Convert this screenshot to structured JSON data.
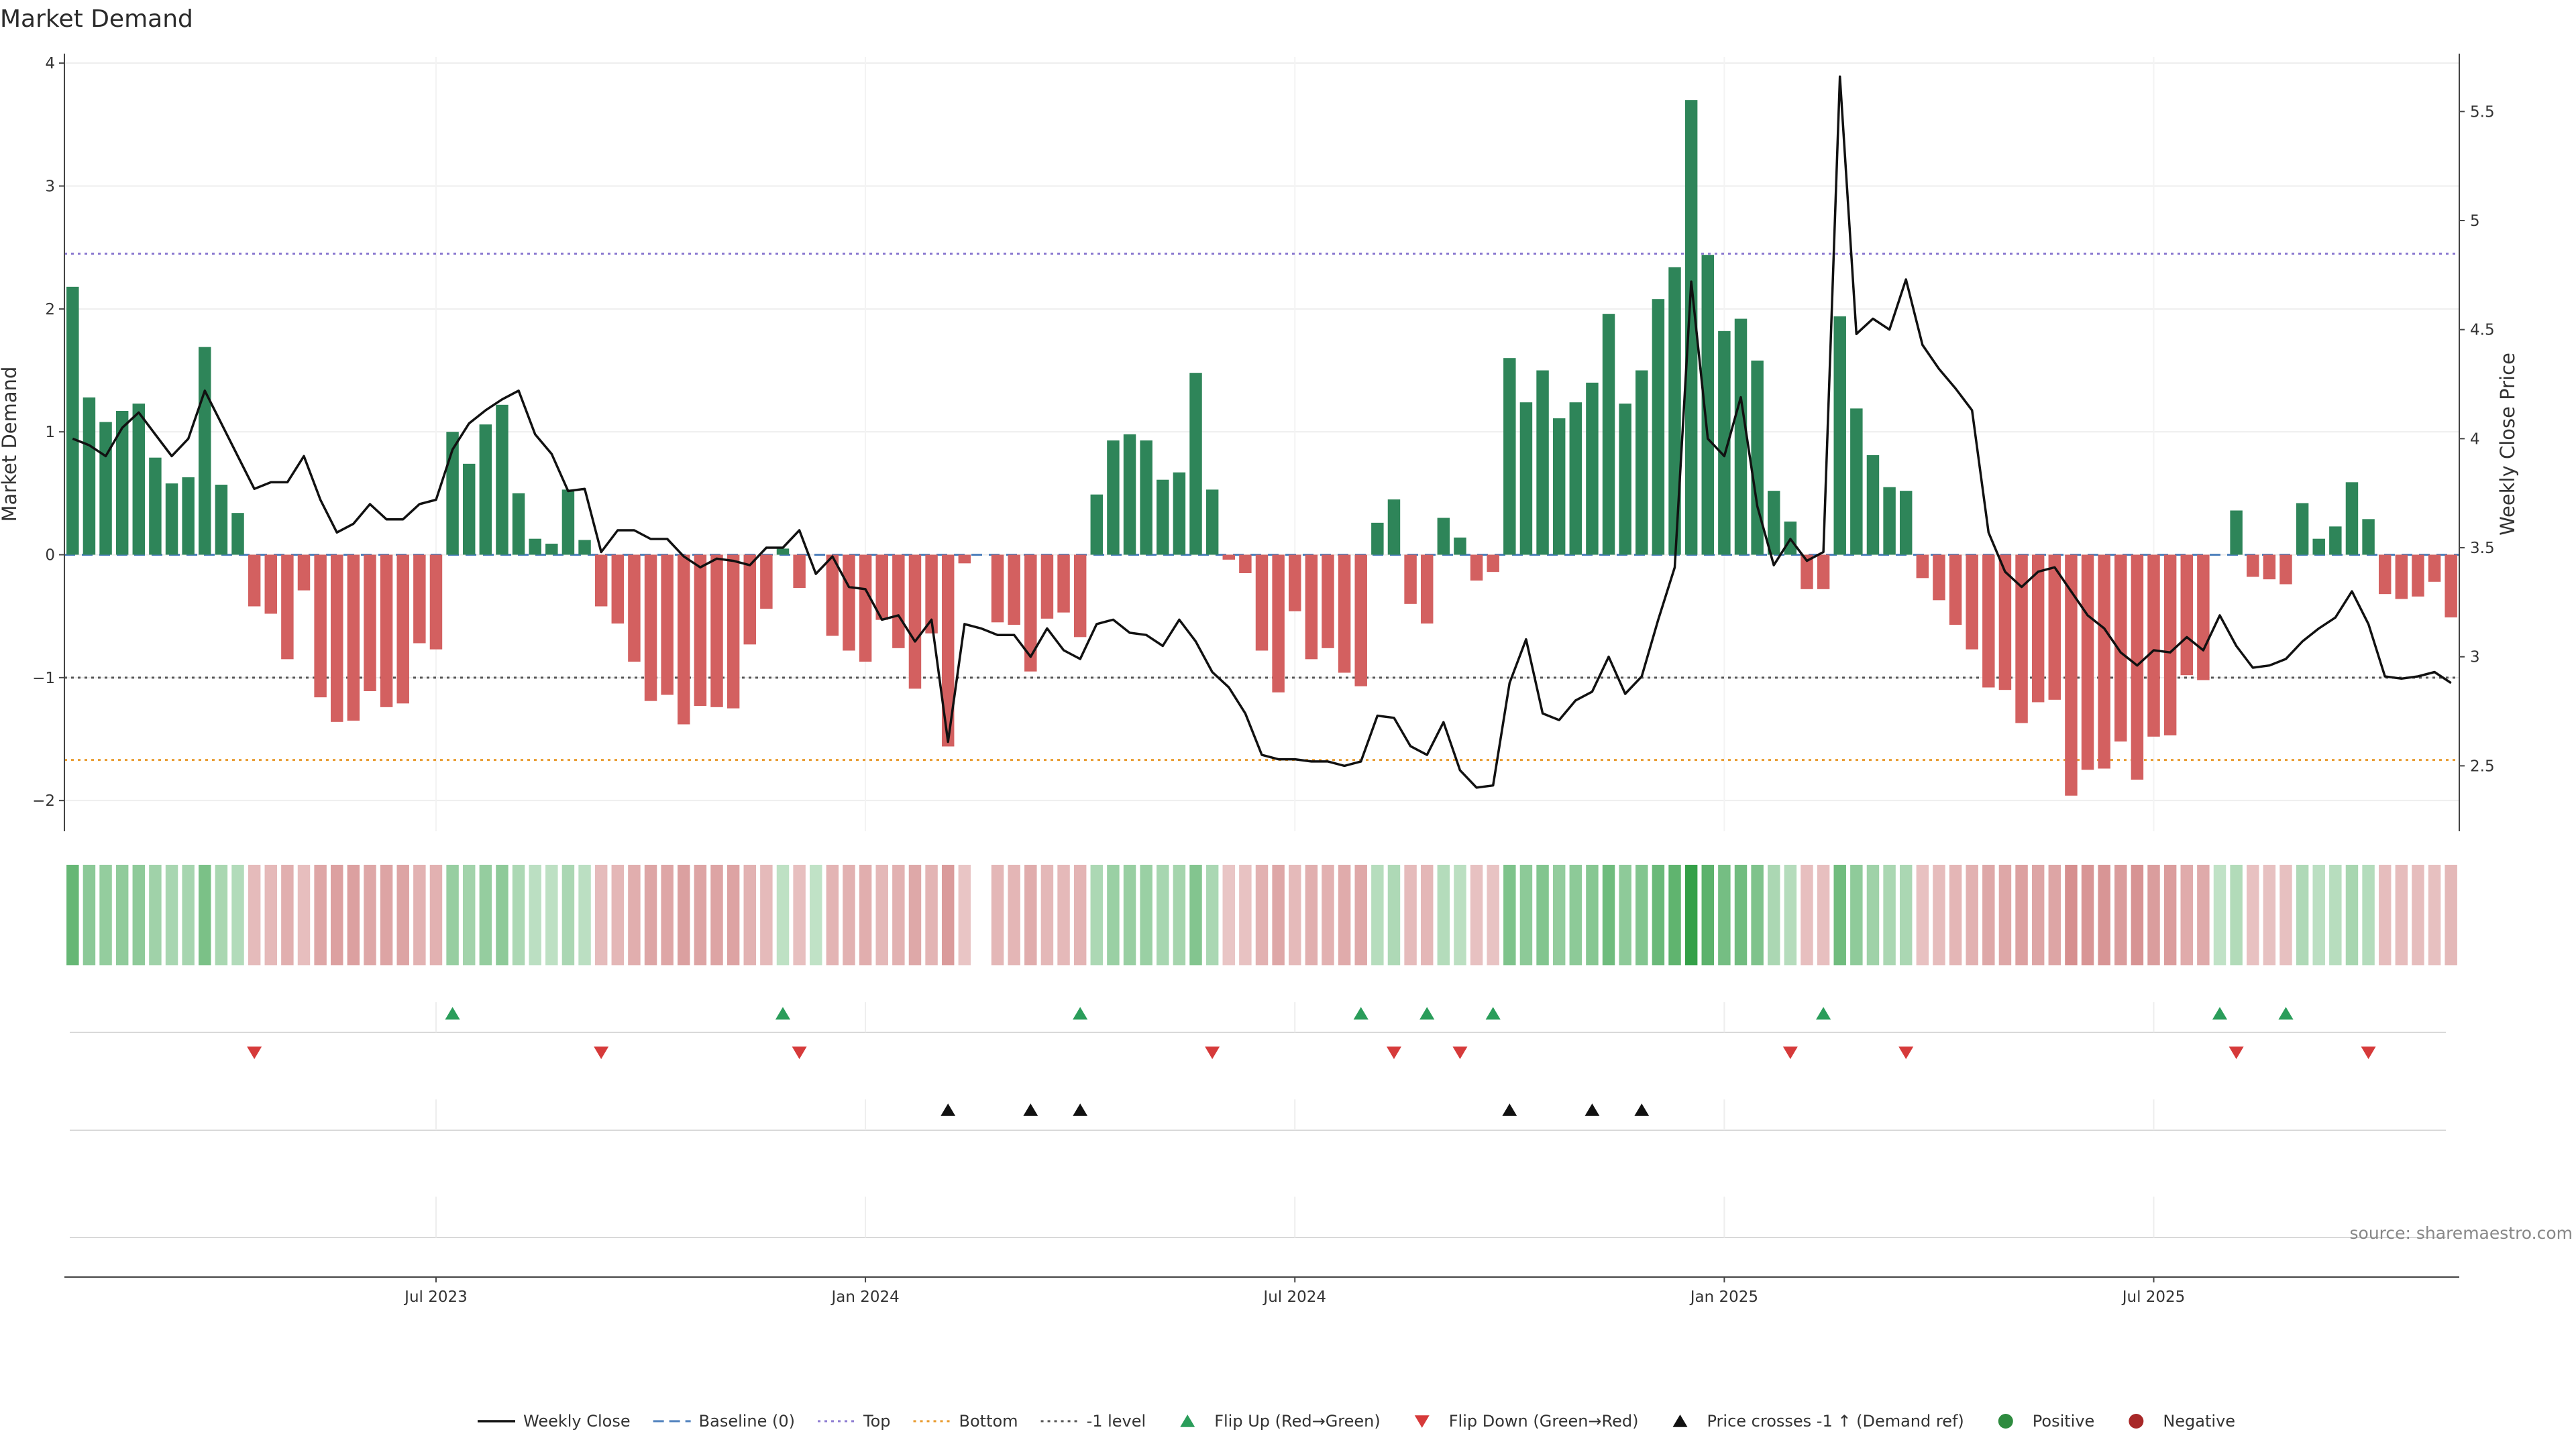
{
  "chart_data": {
    "type": "bar",
    "title": "Market Demand",
    "ylabel": "Market Demand",
    "y2label": "Weekly Close Price",
    "ylim": [
      -2.25,
      4.05
    ],
    "y_ticks": [
      -2,
      -1,
      0,
      1,
      2,
      3,
      4
    ],
    "y2lim": [
      2.2,
      5.75
    ],
    "y2_ticks": [
      2.5,
      3,
      3.5,
      4,
      4.5,
      5,
      5.5
    ],
    "x_ticks": [
      {
        "label": "Jul 2023",
        "week": 22
      },
      {
        "label": "Jan 2024",
        "week": 48
      },
      {
        "label": "Jul 2024",
        "week": 74
      },
      {
        "label": "Jan 2025",
        "week": 100
      },
      {
        "label": "Jul 2025",
        "week": 126
      }
    ],
    "reference_lines": [
      {
        "name": "Top",
        "value": 2.45,
        "color": "#8c7bd1",
        "dash": "4 6"
      },
      {
        "name": "-1 level",
        "value": -1.0,
        "color": "#555555",
        "dash": "4 6"
      },
      {
        "name": "Bottom",
        "value": -1.67,
        "color": "#e89a2d",
        "dash": "4 6"
      },
      {
        "name": "Baseline (0)",
        "value": 0,
        "color": "#4f81bd",
        "dash": "16 10"
      }
    ],
    "series": [
      {
        "name": "Market Demand",
        "kind": "bar",
        "values": [
          2.18,
          1.28,
          1.08,
          1.17,
          1.23,
          0.79,
          0.58,
          0.63,
          1.69,
          0.57,
          0.34,
          -0.42,
          -0.48,
          -0.85,
          -0.29,
          -1.16,
          -1.36,
          -1.35,
          -1.11,
          -1.24,
          -1.21,
          -0.72,
          -0.77,
          1.0,
          0.74,
          1.06,
          1.22,
          0.5,
          0.13,
          0.09,
          0.53,
          0.12,
          -0.42,
          -0.56,
          -0.87,
          -1.19,
          -1.14,
          -1.38,
          -1.23,
          -1.24,
          -1.25,
          -0.73,
          -0.44,
          0.05,
          -0.27,
          0.0,
          -0.66,
          -0.78,
          -0.87,
          -0.53,
          -0.76,
          -1.09,
          -0.64,
          -1.56,
          -0.07,
          0.0,
          -0.55,
          -0.57,
          -0.95,
          -0.52,
          -0.47,
          -0.67,
          0.49,
          0.93,
          0.98,
          0.93,
          0.61,
          0.67,
          1.48,
          0.53,
          -0.04,
          -0.15,
          -0.78,
          -1.12,
          -0.46,
          -0.85,
          -0.76,
          -0.96,
          -1.07,
          0.26,
          0.45,
          -0.4,
          -0.56,
          0.3,
          0.14,
          -0.21,
          -0.14,
          1.6,
          1.24,
          1.5,
          1.11,
          1.24,
          1.4,
          1.96,
          1.23,
          1.5,
          2.08,
          2.34,
          3.7,
          2.44,
          1.82,
          1.92,
          1.58,
          0.52,
          0.27,
          -0.28,
          -0.28,
          1.94,
          1.19,
          0.81,
          0.55,
          0.52,
          -0.19,
          -0.37,
          -0.57,
          -0.77,
          -1.08,
          -1.1,
          -1.37,
          -1.2,
          -1.18,
          -1.96,
          -1.75,
          -1.74,
          -1.52,
          -1.83,
          -1.48,
          -1.47,
          -0.98,
          -1.02,
          0.0,
          0.36,
          -0.18,
          -0.2,
          -0.24,
          0.42,
          0.13,
          0.23,
          0.59,
          0.29,
          -0.32,
          -0.36,
          -0.34,
          -0.22,
          -0.51
        ]
      },
      {
        "name": "Weekly Close",
        "kind": "line",
        "axis": "right",
        "color": "#111111",
        "values": [
          4.0,
          3.97,
          3.92,
          4.05,
          4.12,
          4.02,
          3.92,
          4.0,
          4.22,
          4.07,
          3.92,
          3.77,
          3.8,
          3.8,
          3.92,
          3.72,
          3.57,
          3.61,
          3.7,
          3.63,
          3.63,
          3.7,
          3.72,
          3.95,
          4.07,
          4.13,
          4.18,
          4.22,
          4.02,
          3.93,
          3.76,
          3.77,
          3.48,
          3.58,
          3.58,
          3.54,
          3.54,
          3.46,
          3.41,
          3.45,
          3.44,
          3.42,
          3.5,
          3.5,
          3.58,
          3.38,
          3.46,
          3.32,
          3.31,
          3.17,
          3.19,
          3.07,
          3.17,
          2.61,
          3.15,
          3.13,
          3.1,
          3.1,
          3.0,
          3.13,
          3.03,
          2.99,
          3.15,
          3.17,
          3.11,
          3.1,
          3.05,
          3.17,
          3.07,
          2.93,
          2.86,
          2.74,
          2.55,
          2.53,
          2.53,
          2.52,
          2.52,
          2.5,
          2.52,
          2.73,
          2.72,
          2.59,
          2.55,
          2.7,
          2.48,
          2.4,
          2.41,
          2.88,
          3.08,
          2.74,
          2.71,
          2.8,
          2.84,
          3.0,
          2.83,
          2.91,
          3.17,
          3.41,
          4.72,
          4.0,
          3.92,
          4.19,
          3.69,
          3.42,
          3.54,
          3.44,
          3.48,
          5.66,
          4.48,
          4.55,
          4.5,
          4.73,
          4.43,
          4.32,
          4.23,
          4.13,
          3.57,
          3.39,
          3.32,
          3.39,
          3.41,
          3.3,
          3.19,
          3.13,
          3.02,
          2.96,
          3.03,
          3.02,
          3.09,
          3.03,
          3.19,
          3.05,
          2.95,
          2.96,
          2.99,
          3.07,
          3.13,
          3.18,
          3.3,
          3.15,
          2.91,
          2.9,
          2.91,
          2.93,
          2.88
        ]
      }
    ],
    "heat_strip": {
      "description": "weekly demand intensity strip; color encodes Market Demand value",
      "gap_week": 55
    },
    "events": {
      "flip_up": [
        23,
        43,
        61,
        78,
        82,
        86,
        106,
        130,
        134
      ],
      "flip_down": [
        11,
        32,
        44,
        69,
        80,
        84,
        104,
        111,
        131,
        139
      ],
      "price_crosses_up": [
        53,
        58,
        61,
        87,
        92,
        95
      ]
    },
    "legend": [
      {
        "label": "Weekly Close",
        "marker": "line",
        "color": "#111111"
      },
      {
        "label": "Baseline (0)",
        "marker": "dashed",
        "color": "#4f81bd"
      },
      {
        "label": "Top",
        "marker": "dotted",
        "color": "#8c7bd1"
      },
      {
        "label": "Bottom",
        "marker": "dotted",
        "color": "#e89a2d"
      },
      {
        "label": "-1 level",
        "marker": "dotted",
        "color": "#555555"
      },
      {
        "label": "Flip Up (Red→Green)",
        "marker": "triangle-up",
        "color": "#2a9d5a"
      },
      {
        "label": "Flip Down (Green→Red)",
        "marker": "triangle-down",
        "color": "#d63a3a"
      },
      {
        "label": "Price crosses -1 ↑ (Demand ref)",
        "marker": "triangle-up",
        "color": "#111111"
      },
      {
        "label": "Positive",
        "marker": "dot",
        "color": "#2e8b3f"
      },
      {
        "label": "Negative",
        "marker": "dot",
        "color": "#a82828"
      }
    ],
    "legend_position": "bottom-center",
    "source": "source: sharemaestro.com",
    "colors": {
      "positive": "#2e8559",
      "negative": "#d36060",
      "line": "#111111",
      "grid": "#eeeeee"
    }
  }
}
